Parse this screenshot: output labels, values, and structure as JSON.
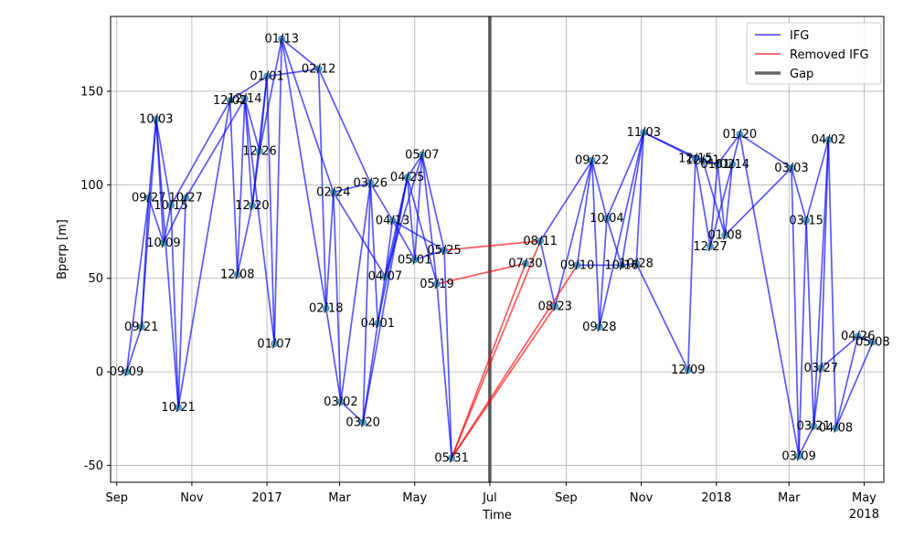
{
  "chart_data": {
    "type": "line",
    "title": "",
    "xlabel": "Time",
    "ylabel": "Bperp [m]",
    "xlim": [
      "2016-08-27",
      "2018-05-17"
    ],
    "ylim": [
      -59,
      190
    ],
    "grid": true,
    "legend_position": "top-right",
    "legend": [
      {
        "key": "ifg",
        "label": "IFG",
        "color": "#0000ff"
      },
      {
        "key": "removed",
        "label": "Removed IFG",
        "color": "#ff0000"
      },
      {
        "key": "gap",
        "label": "Gap",
        "color": "#555555"
      }
    ],
    "x_ticks": [
      {
        "date": "2016-09-01",
        "label": "Sep"
      },
      {
        "date": "2016-11-01",
        "label": "Nov"
      },
      {
        "date": "2017-01-01",
        "label": "2017"
      },
      {
        "date": "2017-03-01",
        "label": "Mar"
      },
      {
        "date": "2017-05-01",
        "label": "May"
      },
      {
        "date": "2017-07-01",
        "label": "Jul"
      },
      {
        "date": "2017-09-01",
        "label": "Sep"
      },
      {
        "date": "2017-11-01",
        "label": "Nov"
      },
      {
        "date": "2018-01-01",
        "label": "2018"
      },
      {
        "date": "2018-03-01",
        "label": "Mar"
      },
      {
        "date": "2018-05-01",
        "label": "May"
      }
    ],
    "x_year_label": "2018",
    "y_ticks": [
      -50,
      0,
      50,
      100,
      150
    ],
    "gap_date": "2017-07-01",
    "colors": {
      "ifg": "#0000ff",
      "removed": "#ff0000",
      "gap": "#555555",
      "point": "#1f77b4",
      "grid": "#b0b0b0"
    },
    "points": [
      {
        "id": "p01",
        "date": "2016-09-09",
        "bperp": 0,
        "label": "09/09"
      },
      {
        "id": "p02",
        "date": "2016-09-21",
        "bperp": 24,
        "label": "09/21"
      },
      {
        "id": "p03",
        "date": "2016-09-27",
        "bperp": 93,
        "label": "09/27"
      },
      {
        "id": "p04",
        "date": "2016-10-03",
        "bperp": 135,
        "label": "10/03"
      },
      {
        "id": "p05",
        "date": "2016-10-09",
        "bperp": 69,
        "label": "10/09"
      },
      {
        "id": "p06",
        "date": "2016-10-15",
        "bperp": 89,
        "label": "10/15"
      },
      {
        "id": "p07",
        "date": "2016-10-21",
        "bperp": -19,
        "label": "10/21"
      },
      {
        "id": "p08",
        "date": "2016-10-27",
        "bperp": 93,
        "label": "10/27"
      },
      {
        "id": "p09",
        "date": "2016-12-02",
        "bperp": 145,
        "label": "12/02"
      },
      {
        "id": "p10",
        "date": "2016-12-08",
        "bperp": 52,
        "label": "12/08"
      },
      {
        "id": "p11",
        "date": "2016-12-14",
        "bperp": 146,
        "label": "12/14"
      },
      {
        "id": "p12",
        "date": "2016-12-20",
        "bperp": 89,
        "label": "12/20"
      },
      {
        "id": "p13",
        "date": "2016-12-26",
        "bperp": 118,
        "label": "12/26"
      },
      {
        "id": "p14",
        "date": "2017-01-01",
        "bperp": 158,
        "label": "01/01"
      },
      {
        "id": "p15",
        "date": "2017-01-07",
        "bperp": 15,
        "label": "01/07"
      },
      {
        "id": "p16",
        "date": "2017-01-13",
        "bperp": 178,
        "label": "01/13"
      },
      {
        "id": "p17",
        "date": "2017-02-12",
        "bperp": 162,
        "label": "02/12"
      },
      {
        "id": "p18",
        "date": "2017-02-18",
        "bperp": 34,
        "label": "02/18"
      },
      {
        "id": "p19",
        "date": "2017-02-24",
        "bperp": 96,
        "label": "02/24"
      },
      {
        "id": "p20",
        "date": "2017-03-02",
        "bperp": -16,
        "label": "03/02"
      },
      {
        "id": "p21",
        "date": "2017-03-20",
        "bperp": -27,
        "label": "03/20"
      },
      {
        "id": "p22",
        "date": "2017-03-26",
        "bperp": 101,
        "label": "03/26"
      },
      {
        "id": "p23",
        "date": "2017-04-01",
        "bperp": 26,
        "label": "04/01"
      },
      {
        "id": "p24",
        "date": "2017-04-07",
        "bperp": 51,
        "label": "04/07"
      },
      {
        "id": "p25",
        "date": "2017-04-13",
        "bperp": 81,
        "label": "04/13"
      },
      {
        "id": "p26",
        "date": "2017-04-25",
        "bperp": 104,
        "label": "04/25"
      },
      {
        "id": "p27",
        "date": "2017-05-01",
        "bperp": 60,
        "label": "05/01"
      },
      {
        "id": "p28",
        "date": "2017-05-07",
        "bperp": 116,
        "label": "05/07"
      },
      {
        "id": "p29",
        "date": "2017-05-19",
        "bperp": 47,
        "label": "05/19"
      },
      {
        "id": "p30",
        "date": "2017-05-25",
        "bperp": 65,
        "label": "05/25"
      },
      {
        "id": "p31",
        "date": "2017-05-31",
        "bperp": -46,
        "label": "05/31"
      },
      {
        "id": "p32",
        "date": "2017-07-30",
        "bperp": 58,
        "label": "07/30"
      },
      {
        "id": "p33",
        "date": "2017-08-11",
        "bperp": 70,
        "label": "08/11"
      },
      {
        "id": "p34",
        "date": "2017-08-23",
        "bperp": 35,
        "label": "08/23"
      },
      {
        "id": "p35",
        "date": "2017-09-10",
        "bperp": 57,
        "label": "09/10"
      },
      {
        "id": "p36",
        "date": "2017-09-22",
        "bperp": 113,
        "label": "09/22"
      },
      {
        "id": "p37",
        "date": "2017-09-28",
        "bperp": 24,
        "label": "09/28"
      },
      {
        "id": "p38",
        "date": "2017-10-04",
        "bperp": 82,
        "label": "10/04"
      },
      {
        "id": "p39",
        "date": "2017-10-16",
        "bperp": 57,
        "label": "10/16"
      },
      {
        "id": "p40",
        "date": "2017-10-28",
        "bperp": 58,
        "label": "10/28"
      },
      {
        "id": "p41",
        "date": "2017-11-03",
        "bperp": 128,
        "label": "11/03"
      },
      {
        "id": "p42",
        "date": "2017-12-09",
        "bperp": 1,
        "label": "12/09"
      },
      {
        "id": "p43",
        "date": "2017-12-15",
        "bperp": 114,
        "label": "12/15"
      },
      {
        "id": "p44",
        "date": "2017-12-21",
        "bperp": 113,
        "label": "12/21"
      },
      {
        "id": "p45",
        "date": "2017-12-27",
        "bperp": 67,
        "label": "12/27"
      },
      {
        "id": "p46",
        "date": "2018-01-02",
        "bperp": 111,
        "label": "01/02"
      },
      {
        "id": "p47",
        "date": "2018-01-08",
        "bperp": 73,
        "label": "01/08"
      },
      {
        "id": "p48",
        "date": "2018-01-14",
        "bperp": 111,
        "label": "01/14"
      },
      {
        "id": "p49",
        "date": "2018-01-20",
        "bperp": 127,
        "label": "01/20"
      },
      {
        "id": "p50",
        "date": "2018-03-03",
        "bperp": 109,
        "label": "03/03"
      },
      {
        "id": "p51",
        "date": "2018-03-09",
        "bperp": -45,
        "label": "03/09"
      },
      {
        "id": "p52",
        "date": "2018-03-15",
        "bperp": 81,
        "label": "03/15"
      },
      {
        "id": "p53",
        "date": "2018-03-21",
        "bperp": -29,
        "label": "03/21"
      },
      {
        "id": "p54",
        "date": "2018-03-27",
        "bperp": 2,
        "label": "03/27"
      },
      {
        "id": "p55",
        "date": "2018-04-02",
        "bperp": 124,
        "label": "04/02"
      },
      {
        "id": "p56",
        "date": "2018-04-08",
        "bperp": -30,
        "label": "04/08"
      },
      {
        "id": "p57",
        "date": "2018-04-26",
        "bperp": 19,
        "label": "04/26"
      },
      {
        "id": "p58",
        "date": "2018-05-08",
        "bperp": 16,
        "label": "05/08"
      }
    ],
    "ifg_pairs": [
      [
        "p01",
        "p02"
      ],
      [
        "p01",
        "p03"
      ],
      [
        "p02",
        "p03"
      ],
      [
        "p02",
        "p04"
      ],
      [
        "p03",
        "p04"
      ],
      [
        "p03",
        "p05"
      ],
      [
        "p04",
        "p05"
      ],
      [
        "p04",
        "p06"
      ],
      [
        "p04",
        "p07"
      ],
      [
        "p05",
        "p06"
      ],
      [
        "p05",
        "p08"
      ],
      [
        "p06",
        "p07"
      ],
      [
        "p06",
        "p09"
      ],
      [
        "p07",
        "p08"
      ],
      [
        "p07",
        "p09"
      ],
      [
        "p08",
        "p11"
      ],
      [
        "p09",
        "p10"
      ],
      [
        "p09",
        "p14"
      ],
      [
        "p10",
        "p11"
      ],
      [
        "p10",
        "p12"
      ],
      [
        "p11",
        "p12"
      ],
      [
        "p11",
        "p13"
      ],
      [
        "p11",
        "p15"
      ],
      [
        "p12",
        "p13"
      ],
      [
        "p12",
        "p14"
      ],
      [
        "p13",
        "p14"
      ],
      [
        "p13",
        "p16"
      ],
      [
        "p14",
        "p15"
      ],
      [
        "p14",
        "p17"
      ],
      [
        "p15",
        "p16"
      ],
      [
        "p16",
        "p17"
      ],
      [
        "p16",
        "p18"
      ],
      [
        "p16",
        "p19"
      ],
      [
        "p17",
        "p18"
      ],
      [
        "p17",
        "p22"
      ],
      [
        "p18",
        "p19"
      ],
      [
        "p18",
        "p20"
      ],
      [
        "p19",
        "p20"
      ],
      [
        "p19",
        "p22"
      ],
      [
        "p19",
        "p24"
      ],
      [
        "p20",
        "p21"
      ],
      [
        "p20",
        "p22"
      ],
      [
        "p21",
        "p22"
      ],
      [
        "p21",
        "p23"
      ],
      [
        "p21",
        "p26"
      ],
      [
        "p22",
        "p23"
      ],
      [
        "p22",
        "p25"
      ],
      [
        "p23",
        "p24"
      ],
      [
        "p23",
        "p26"
      ],
      [
        "p24",
        "p25"
      ],
      [
        "p24",
        "p26"
      ],
      [
        "p24",
        "p28"
      ],
      [
        "p25",
        "p27"
      ],
      [
        "p25",
        "p30"
      ],
      [
        "p26",
        "p27"
      ],
      [
        "p26",
        "p28"
      ],
      [
        "p26",
        "p29"
      ],
      [
        "p27",
        "p28"
      ],
      [
        "p27",
        "p30"
      ],
      [
        "p28",
        "p29"
      ],
      [
        "p28",
        "p30"
      ],
      [
        "p29",
        "p31"
      ],
      [
        "p30",
        "p31"
      ],
      [
        "p33",
        "p36"
      ],
      [
        "p33",
        "p34"
      ],
      [
        "p34",
        "p36"
      ],
      [
        "p35",
        "p36"
      ],
      [
        "p35",
        "p39"
      ],
      [
        "p36",
        "p37"
      ],
      [
        "p36",
        "p38"
      ],
      [
        "p37",
        "p38"
      ],
      [
        "p37",
        "p41"
      ],
      [
        "p38",
        "p39"
      ],
      [
        "p38",
        "p41"
      ],
      [
        "p39",
        "p40"
      ],
      [
        "p39",
        "p41"
      ],
      [
        "p40",
        "p41"
      ],
      [
        "p40",
        "p42"
      ],
      [
        "p41",
        "p43"
      ],
      [
        "p41",
        "p44"
      ],
      [
        "p42",
        "p43"
      ],
      [
        "p43",
        "p45"
      ],
      [
        "p43",
        "p46"
      ],
      [
        "p44",
        "p46"
      ],
      [
        "p44",
        "p47"
      ],
      [
        "p45",
        "p46"
      ],
      [
        "p45",
        "p48"
      ],
      [
        "p46",
        "p47"
      ],
      [
        "p46",
        "p49"
      ],
      [
        "p47",
        "p48"
      ],
      [
        "p47",
        "p50"
      ],
      [
        "p48",
        "p49"
      ],
      [
        "p49",
        "p50"
      ],
      [
        "p49",
        "p51"
      ],
      [
        "p50",
        "p51"
      ],
      [
        "p50",
        "p52"
      ],
      [
        "p51",
        "p52"
      ],
      [
        "p51",
        "p53"
      ],
      [
        "p52",
        "p53"
      ],
      [
        "p52",
        "p55"
      ],
      [
        "p53",
        "p54"
      ],
      [
        "p53",
        "p55"
      ],
      [
        "p54",
        "p55"
      ],
      [
        "p54",
        "p57"
      ],
      [
        "p55",
        "p56"
      ],
      [
        "p56",
        "p57"
      ],
      [
        "p56",
        "p58"
      ],
      [
        "p57",
        "p58"
      ]
    ],
    "removed_pairs": [
      [
        "p30",
        "p33"
      ],
      [
        "p29",
        "p32"
      ],
      [
        "p31",
        "p32"
      ],
      [
        "p31",
        "p33"
      ],
      [
        "p31",
        "p34"
      ],
      [
        "p31",
        "p35"
      ]
    ]
  }
}
